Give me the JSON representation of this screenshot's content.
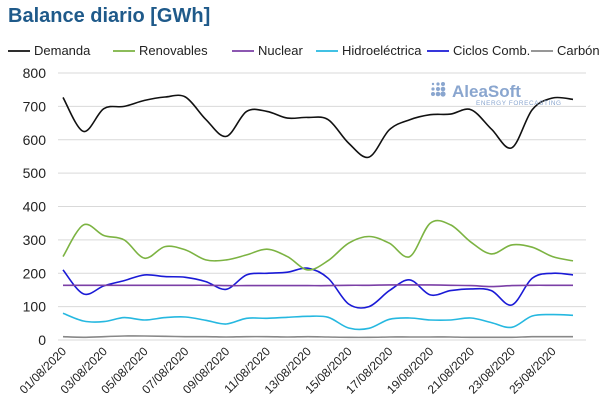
{
  "chart_data": {
    "type": "line",
    "title": "Balance diario [GWh]",
    "xlabel": "",
    "ylabel": "",
    "ylim": [
      0,
      800
    ],
    "yticks": [
      0,
      100,
      200,
      300,
      400,
      500,
      600,
      700,
      800
    ],
    "grid": true,
    "legend": "top",
    "x": [
      "01/08/2020",
      "02/08/2020",
      "03/08/2020",
      "04/08/2020",
      "05/08/2020",
      "06/08/2020",
      "07/08/2020",
      "08/08/2020",
      "09/08/2020",
      "10/08/2020",
      "11/08/2020",
      "12/08/2020",
      "13/08/2020",
      "14/08/2020",
      "15/08/2020",
      "16/08/2020",
      "17/08/2020",
      "18/08/2020",
      "19/08/2020",
      "20/08/2020",
      "21/08/2020",
      "22/08/2020",
      "23/08/2020",
      "24/08/2020",
      "25/08/2020",
      "26/08/2020"
    ],
    "xtick_labels": [
      "01/08/2020",
      "03/08/2020",
      "05/08/2020",
      "07/08/2020",
      "09/08/2020",
      "11/08/2020",
      "13/08/2020",
      "15/08/2020",
      "17/08/2020",
      "19/08/2020",
      "21/08/2020",
      "23/08/2020",
      "25/08/2020"
    ],
    "series": [
      {
        "name": "Demanda",
        "color": "#111111",
        "values": [
          727,
          625,
          693,
          700,
          718,
          728,
          728,
          661,
          610,
          685,
          685,
          665,
          667,
          660,
          590,
          548,
          630,
          660,
          675,
          677,
          690,
          632,
          576,
          690,
          725,
          721
        ]
      },
      {
        "name": "Renovables",
        "color": "#7cb342",
        "values": [
          250,
          345,
          313,
          300,
          245,
          280,
          270,
          240,
          240,
          255,
          272,
          250,
          210,
          238,
          290,
          310,
          290,
          250,
          350,
          345,
          293,
          258,
          285,
          278,
          250,
          237
        ]
      },
      {
        "name": "Nuclear",
        "color": "#7b3fa6",
        "values": [
          164,
          164,
          164,
          164,
          164,
          164,
          164,
          164,
          163,
          163,
          163,
          163,
          163,
          163,
          164,
          164,
          165,
          165,
          165,
          164,
          163,
          160,
          163,
          164,
          164,
          164
        ]
      },
      {
        "name": "Hidroeléctrica",
        "color": "#26b8e0",
        "values": [
          80,
          57,
          55,
          67,
          60,
          67,
          69,
          59,
          48,
          65,
          65,
          68,
          71,
          68,
          36,
          35,
          62,
          66,
          60,
          60,
          66,
          52,
          38,
          72,
          76,
          74
        ]
      },
      {
        "name": "Ciclos Comb.",
        "color": "#1a1ad6",
        "values": [
          210,
          138,
          162,
          178,
          195,
          190,
          188,
          175,
          152,
          195,
          200,
          203,
          215,
          185,
          108,
          100,
          148,
          180,
          135,
          148,
          153,
          148,
          105,
          185,
          200,
          195
        ]
      },
      {
        "name": "Carbón",
        "color": "#888888",
        "values": [
          10,
          8,
          10,
          12,
          12,
          11,
          10,
          10,
          9,
          10,
          10,
          9,
          10,
          9,
          8,
          8,
          9,
          9,
          9,
          9,
          8,
          8,
          8,
          10,
          10,
          10
        ]
      }
    ]
  },
  "logo": {
    "name": "AleaSoft",
    "tagline": "ENERGY FORECASTING",
    "color": "#8aa6cf"
  }
}
